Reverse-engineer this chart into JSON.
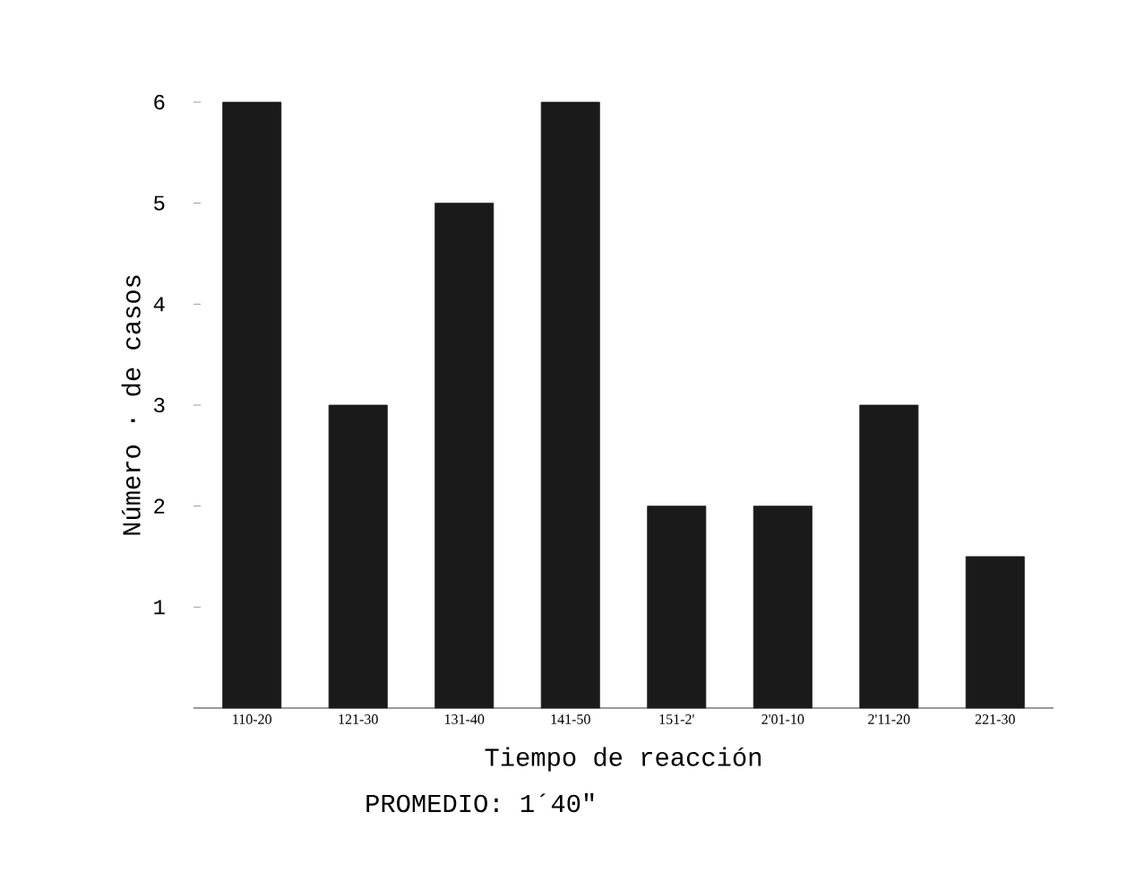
{
  "chart_data": {
    "type": "bar",
    "categories": [
      "110-20",
      "121-30",
      "131-40",
      "141-50",
      "151-2'",
      "2'01-10",
      "2'11-20",
      "221-30"
    ],
    "values": [
      6,
      3,
      5,
      6,
      2,
      2,
      3,
      1.5
    ],
    "color": "#1a1a1a",
    "xlabel": "Tiempo de reacción",
    "ylabel": "Número · de casos",
    "annotations": [
      "PROMEDIO: 1´40\""
    ],
    "ylim": [
      0,
      6
    ],
    "yticks": [
      1,
      2,
      3,
      4,
      5,
      6
    ],
    "grid": false
  }
}
